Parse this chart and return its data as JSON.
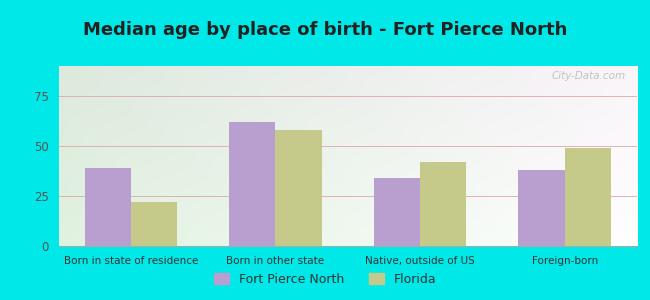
{
  "title": "Median age by place of birth - Fort Pierce North",
  "categories": [
    "Born in state of residence",
    "Born in other state",
    "Native, outside of US",
    "Foreign-born"
  ],
  "fort_pierce_values": [
    39,
    62,
    34,
    38
  ],
  "florida_values": [
    22,
    58,
    42,
    49
  ],
  "bar_color_fp": "#b89fcf",
  "bar_color_fl": "#c5c98a",
  "ylim": [
    0,
    90
  ],
  "yticks": [
    0,
    25,
    50,
    75
  ],
  "legend_fp": "Fort Pierce North",
  "legend_fl": "Florida",
  "bg_outer": "#00e8e8",
  "title_fontsize": 13,
  "bar_width": 0.32,
  "watermark": "City-Data.com"
}
